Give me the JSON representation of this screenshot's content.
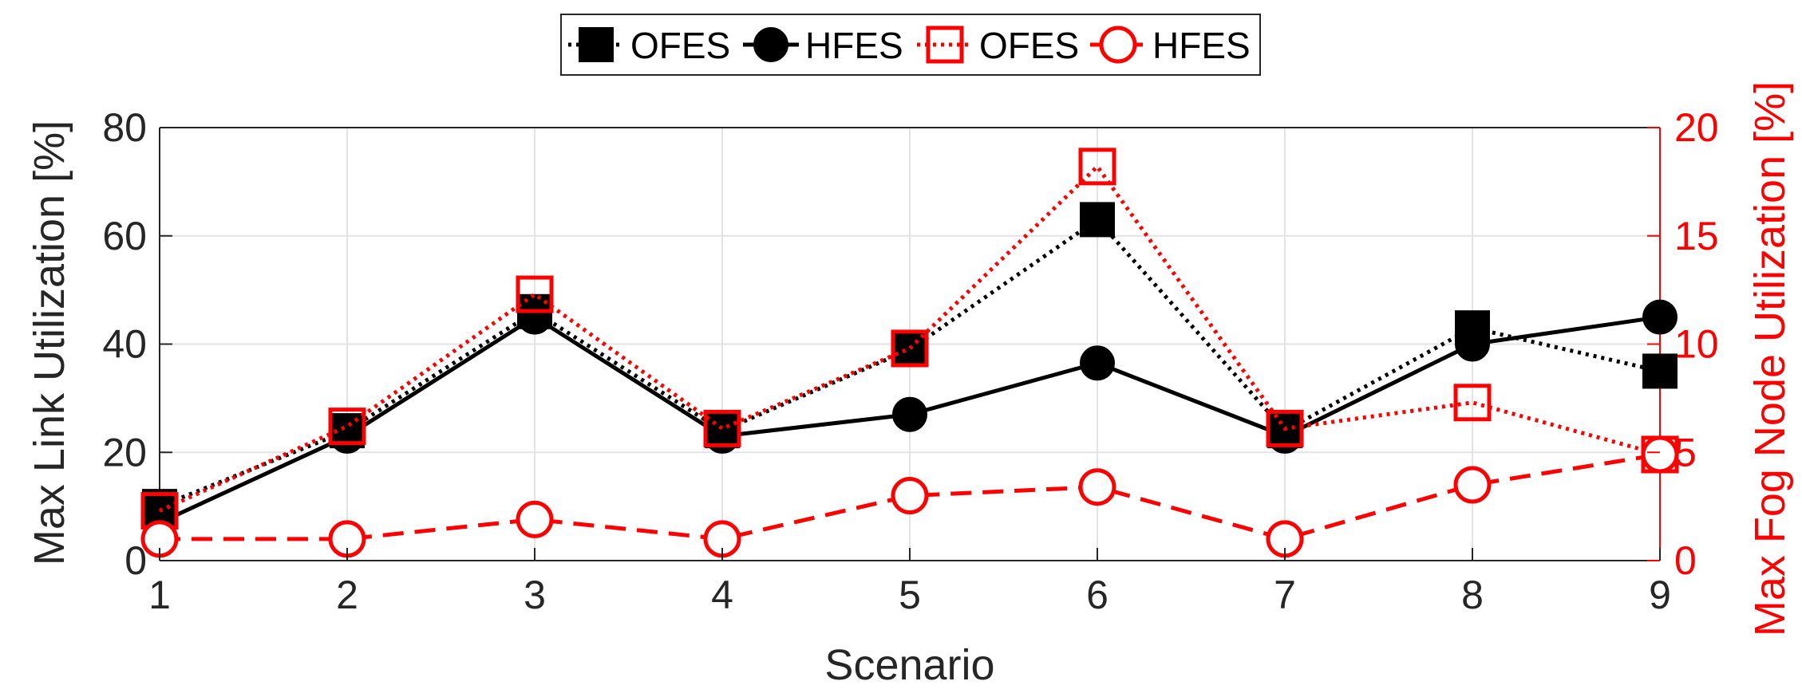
{
  "chart_data": {
    "type": "line",
    "title": "",
    "xlabel": "Scenario",
    "ylabel": "Max Link Utilization [%]",
    "y2label": "Max Fog Node Utilization [%]",
    "x": [
      1,
      2,
      3,
      4,
      5,
      6,
      7,
      8,
      9
    ],
    "xlim": [
      1,
      9
    ],
    "ylim": [
      0,
      80
    ],
    "y2lim": [
      0,
      20
    ],
    "xticks": [
      "1",
      "2",
      "3",
      "4",
      "5",
      "6",
      "7",
      "8",
      "9"
    ],
    "yticks": [
      "0",
      "20",
      "40",
      "60",
      "80"
    ],
    "y2ticks": [
      "0",
      "5",
      "10",
      "15",
      "20"
    ],
    "grid": true,
    "legend_position": "top-center",
    "series": [
      {
        "name": "OFES",
        "axis": "left",
        "color": "#000000",
        "line": "dotted",
        "marker": "filled-square",
        "values": [
          10,
          24,
          46,
          24,
          39,
          63,
          24,
          43,
          35
        ]
      },
      {
        "name": "HFES",
        "axis": "left",
        "color": "#000000",
        "line": "solid",
        "marker": "filled-circle",
        "values": [
          7,
          23,
          45,
          23,
          27,
          36.5,
          23,
          40,
          45
        ]
      },
      {
        "name": "OFES",
        "axis": "right",
        "color": "#ff0000",
        "line": "dotted",
        "marker": "open-square",
        "values": [
          2.3,
          6.2,
          12.3,
          6.1,
          9.8,
          18.2,
          6.1,
          7.3,
          4.9
        ]
      },
      {
        "name": "HFES",
        "axis": "right",
        "color": "#ff0000",
        "line": "dashed",
        "marker": "open-circle",
        "values": [
          1.0,
          1.0,
          1.9,
          1.0,
          3.0,
          3.4,
          1.0,
          3.5,
          4.9
        ]
      }
    ]
  }
}
